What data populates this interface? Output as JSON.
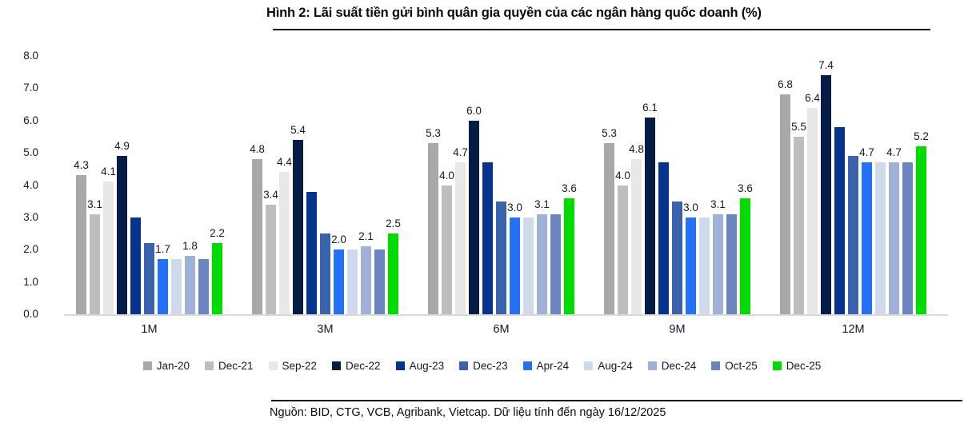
{
  "chart_data": {
    "type": "bar",
    "title": "Hình 2: Lãi suất tiền gửi bình quân gia quyền của các ngân hàng quốc doanh (%)",
    "source": "Nguồn: BID, CTG, VCB, Agribank, Vietcap. Dữ liệu tính đến ngày 16/12/2025",
    "categories": [
      "1M",
      "3M",
      "6M",
      "9M",
      "12M"
    ],
    "series": [
      {
        "name": "Jan-20",
        "color": "#a8a8a8",
        "labeled": true,
        "values": [
          4.3,
          4.8,
          5.3,
          5.3,
          6.8
        ]
      },
      {
        "name": "Dec-21",
        "color": "#bebebe",
        "labeled": true,
        "values": [
          3.1,
          3.4,
          4.0,
          4.0,
          5.5
        ]
      },
      {
        "name": "Sep-22",
        "color": "#e8e8e8",
        "labeled": true,
        "values": [
          4.1,
          4.4,
          4.7,
          4.8,
          6.4
        ]
      },
      {
        "name": "Dec-22",
        "color": "#051c44",
        "labeled": true,
        "values": [
          4.9,
          5.4,
          6.0,
          6.1,
          7.4
        ]
      },
      {
        "name": "Aug-23",
        "color": "#06338c",
        "labeled": false,
        "values": [
          3.0,
          3.8,
          4.7,
          4.7,
          5.8
        ]
      },
      {
        "name": "Dec-23",
        "color": "#3a63ae",
        "labeled": false,
        "values": [
          2.2,
          2.5,
          3.5,
          3.5,
          4.9
        ]
      },
      {
        "name": "Apr-24",
        "color": "#2371f7",
        "labeled": true,
        "values": [
          1.7,
          2.0,
          3.0,
          3.0,
          4.7
        ]
      },
      {
        "name": "Aug-24",
        "color": "#cfd9ec",
        "labeled": false,
        "values": [
          1.7,
          2.0,
          3.0,
          3.0,
          4.7
        ]
      },
      {
        "name": "Dec-24",
        "color": "#9fb1d7",
        "labeled": true,
        "values": [
          1.8,
          2.1,
          3.1,
          3.1,
          4.7
        ]
      },
      {
        "name": "Oct-25",
        "color": "#6a85bf",
        "labeled": false,
        "values": [
          1.7,
          2.0,
          3.1,
          3.1,
          4.7
        ]
      },
      {
        "name": "Dec-25",
        "color": "#00dc00",
        "labeled": true,
        "values": [
          2.2,
          2.5,
          3.6,
          3.6,
          5.2
        ]
      }
    ],
    "ylim": [
      0,
      8
    ],
    "yticks": [
      "0.0",
      "1.0",
      "2.0",
      "3.0",
      "4.0",
      "5.0",
      "6.0",
      "7.0",
      "8.0"
    ],
    "grid": false,
    "legend_position": "bottom"
  }
}
